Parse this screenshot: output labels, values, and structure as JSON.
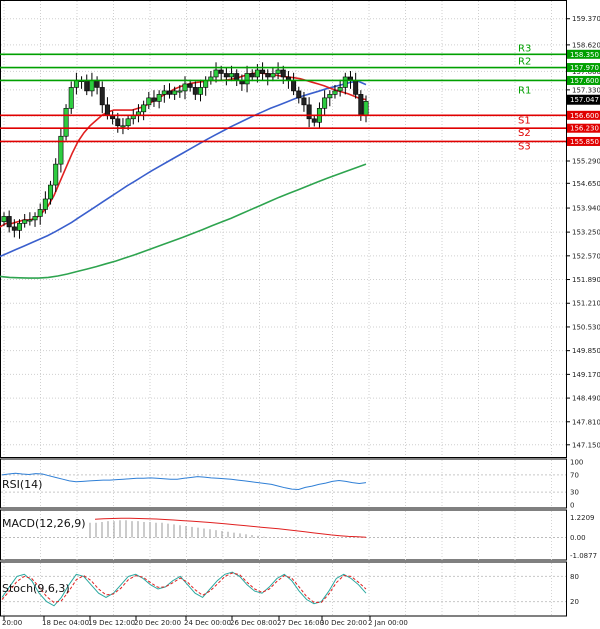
{
  "chart_data": {
    "type": "candlestick",
    "ylim": [
      146.8,
      159.85
    ],
    "y_ticks": [
      "159.370",
      "158.620",
      "157.860",
      "157.330",
      "156.580",
      "155.820",
      "155.290",
      "154.650",
      "153.940",
      "153.250",
      "152.570",
      "151.890",
      "151.210",
      "150.530",
      "149.850",
      "149.170",
      "148.490",
      "147.810",
      "147.150"
    ],
    "x_ticks": [
      "20:00",
      "18 Dec 04:00",
      "19 Dec 12:00",
      "20 Dec 20:00",
      "24 Dec 00:00",
      "26 Dec 08:00",
      "27 Dec 16:00",
      "30 Dec 20:00",
      "2 Jan 00:00"
    ],
    "current_price": "157.047",
    "levels": [
      {
        "name": "R3",
        "value": 158.35,
        "label": "158.350",
        "color": "#00a000"
      },
      {
        "name": "R2",
        "value": 157.97,
        "label": "157.970",
        "color": "#00a000"
      },
      {
        "name": "R1",
        "value": 157.6,
        "label": "157.600",
        "color": "#00a000"
      },
      {
        "name": "S1",
        "value": 156.6,
        "label": "156.600",
        "color": "#e00000"
      },
      {
        "name": "S2",
        "value": 156.23,
        "label": "156.230",
        "color": "#e00000"
      },
      {
        "name": "S3",
        "value": 155.85,
        "label": "155.850",
        "color": "#e00000"
      }
    ],
    "closes": [
      153.7,
      153.4,
      153.3,
      153.5,
      153.6,
      153.6,
      153.7,
      153.9,
      154.2,
      154.6,
      155.2,
      156.0,
      156.8,
      157.4,
      157.6,
      157.6,
      157.3,
      157.6,
      157.4,
      156.9,
      156.6,
      156.5,
      156.3,
      156.3,
      156.5,
      156.6,
      156.7,
      156.9,
      157.1,
      157.0,
      157.2,
      157.3,
      157.2,
      157.3,
      157.3,
      157.5,
      157.4,
      157.2,
      157.4,
      157.6,
      157.7,
      157.9,
      157.8,
      157.7,
      157.8,
      157.6,
      157.5,
      157.8,
      157.7,
      157.9,
      157.8,
      157.7,
      157.8,
      157.9,
      157.7,
      157.6,
      157.3,
      157.1,
      156.9,
      156.5,
      156.4,
      156.8,
      157.1,
      157.2,
      157.3,
      157.4,
      157.7,
      157.6,
      157.2,
      156.6,
      157.0
    ],
    "ema_fast": [
      153.4,
      153.5,
      153.5,
      153.55,
      153.6,
      153.6,
      153.65,
      153.8,
      154.0,
      154.3,
      154.7,
      155.1,
      155.5,
      155.85,
      156.1,
      156.3,
      156.45,
      156.6,
      156.7,
      156.75,
      156.75,
      156.75,
      156.75,
      156.8,
      156.85,
      156.95,
      157.05,
      157.15,
      157.25,
      157.35,
      157.42,
      157.48,
      157.52,
      157.55,
      157.57,
      157.6,
      157.6,
      157.6,
      157.62,
      157.65,
      157.7,
      157.75,
      157.8,
      157.82,
      157.8,
      157.78,
      157.75,
      157.72,
      157.7,
      157.68,
      157.65,
      157.6,
      157.55,
      157.5,
      157.45,
      157.38,
      157.32,
      157.27,
      157.22,
      157.15,
      157.08,
      157.05
    ],
    "ema_mid": [
      152.55,
      152.65,
      152.75,
      152.85,
      152.95,
      153.05,
      153.15,
      153.27,
      153.4,
      153.53,
      153.68,
      153.83,
      153.98,
      154.13,
      154.28,
      154.43,
      154.58,
      154.72,
      154.86,
      155.0,
      155.13,
      155.26,
      155.39,
      155.52,
      155.65,
      155.78,
      155.91,
      156.03,
      156.15,
      156.27,
      156.38,
      156.49,
      156.6,
      156.7,
      156.8,
      156.89,
      156.98,
      157.07,
      157.15,
      157.22,
      157.29,
      157.36,
      157.42,
      157.48,
      157.54,
      157.58,
      157.48
    ],
    "ema_slow": [
      151.98,
      151.95,
      151.94,
      151.93,
      151.93,
      151.95,
      151.99,
      152.05,
      152.12,
      152.19,
      152.26,
      152.34,
      152.42,
      152.51,
      152.6,
      152.7,
      152.8,
      152.9,
      153.0,
      153.1,
      153.21,
      153.32,
      153.43,
      153.54,
      153.65,
      153.77,
      153.89,
      154.01,
      154.13,
      154.25,
      154.36,
      154.47,
      154.58,
      154.69,
      154.8,
      154.9,
      155.0,
      155.1,
      155.2
    ],
    "indicators": {
      "rsi_label": "RSI(14)",
      "rsi_ticks": [
        "100",
        "70",
        "30",
        "0"
      ],
      "rsi": [
        70,
        72,
        74,
        72,
        71,
        73,
        72,
        68,
        64,
        60,
        56,
        54,
        55,
        56,
        57,
        58,
        58,
        59,
        60,
        61,
        62,
        62,
        63,
        62,
        61,
        60,
        60,
        62,
        64,
        66,
        65,
        63,
        62,
        61,
        60,
        58,
        56,
        54,
        52,
        50,
        48,
        44,
        40,
        37,
        36,
        41,
        44,
        48,
        51,
        55,
        57,
        55,
        52,
        50,
        52
      ],
      "macd_label": "MACD(12,26,9)",
      "macd_ticks": [
        "1.2209",
        "0.00",
        "-1.0877"
      ],
      "macd_hist": [
        0.9,
        0.9,
        0.95,
        1.0,
        1.0,
        1.05,
        1.05,
        1.0,
        1.0,
        0.95,
        0.95,
        0.9,
        0.9,
        0.85,
        0.8,
        0.75,
        0.7,
        0.65,
        0.6,
        0.55,
        0.5,
        0.45,
        0.4,
        0.35,
        0.3,
        0.25,
        0.2,
        0.15,
        0.1,
        0.05
      ],
      "macd_signal": [
        1.12,
        1.15,
        1.16,
        1.17,
        1.17,
        1.16,
        1.15,
        1.13,
        1.1,
        1.07,
        1.03,
        1.0,
        0.96,
        0.92,
        0.88,
        0.83,
        0.78,
        0.73,
        0.68,
        0.63,
        0.58,
        0.53,
        0.47,
        0.41,
        0.35,
        0.28,
        0.22,
        0.16,
        0.11,
        0.07,
        0.04,
        0.02
      ],
      "stoch_label": "Stoch(9,6,3)",
      "stoch_ticks": [
        "80",
        "20"
      ],
      "stoch_k": [
        30,
        55,
        80,
        85,
        70,
        40,
        20,
        10,
        30,
        60,
        85,
        80,
        60,
        40,
        30,
        40,
        60,
        80,
        85,
        75,
        60,
        50,
        55,
        70,
        80,
        60,
        40,
        30,
        50,
        70,
        85,
        90,
        80,
        60,
        45,
        40,
        55,
        75,
        85,
        70,
        45,
        25,
        15,
        20,
        45,
        75,
        85,
        75,
        60,
        40
      ],
      "stoch_d": [
        25,
        45,
        68,
        80,
        75,
        55,
        32,
        18,
        22,
        45,
        72,
        82,
        70,
        50,
        36,
        38,
        52,
        72,
        82,
        78,
        65,
        54,
        55,
        65,
        76,
        66,
        48,
        35,
        45,
        62,
        80,
        88,
        84,
        66,
        50,
        42,
        50,
        68,
        82,
        76,
        55,
        32,
        18,
        18,
        38,
        65,
        82,
        80,
        66,
        50
      ]
    }
  }
}
